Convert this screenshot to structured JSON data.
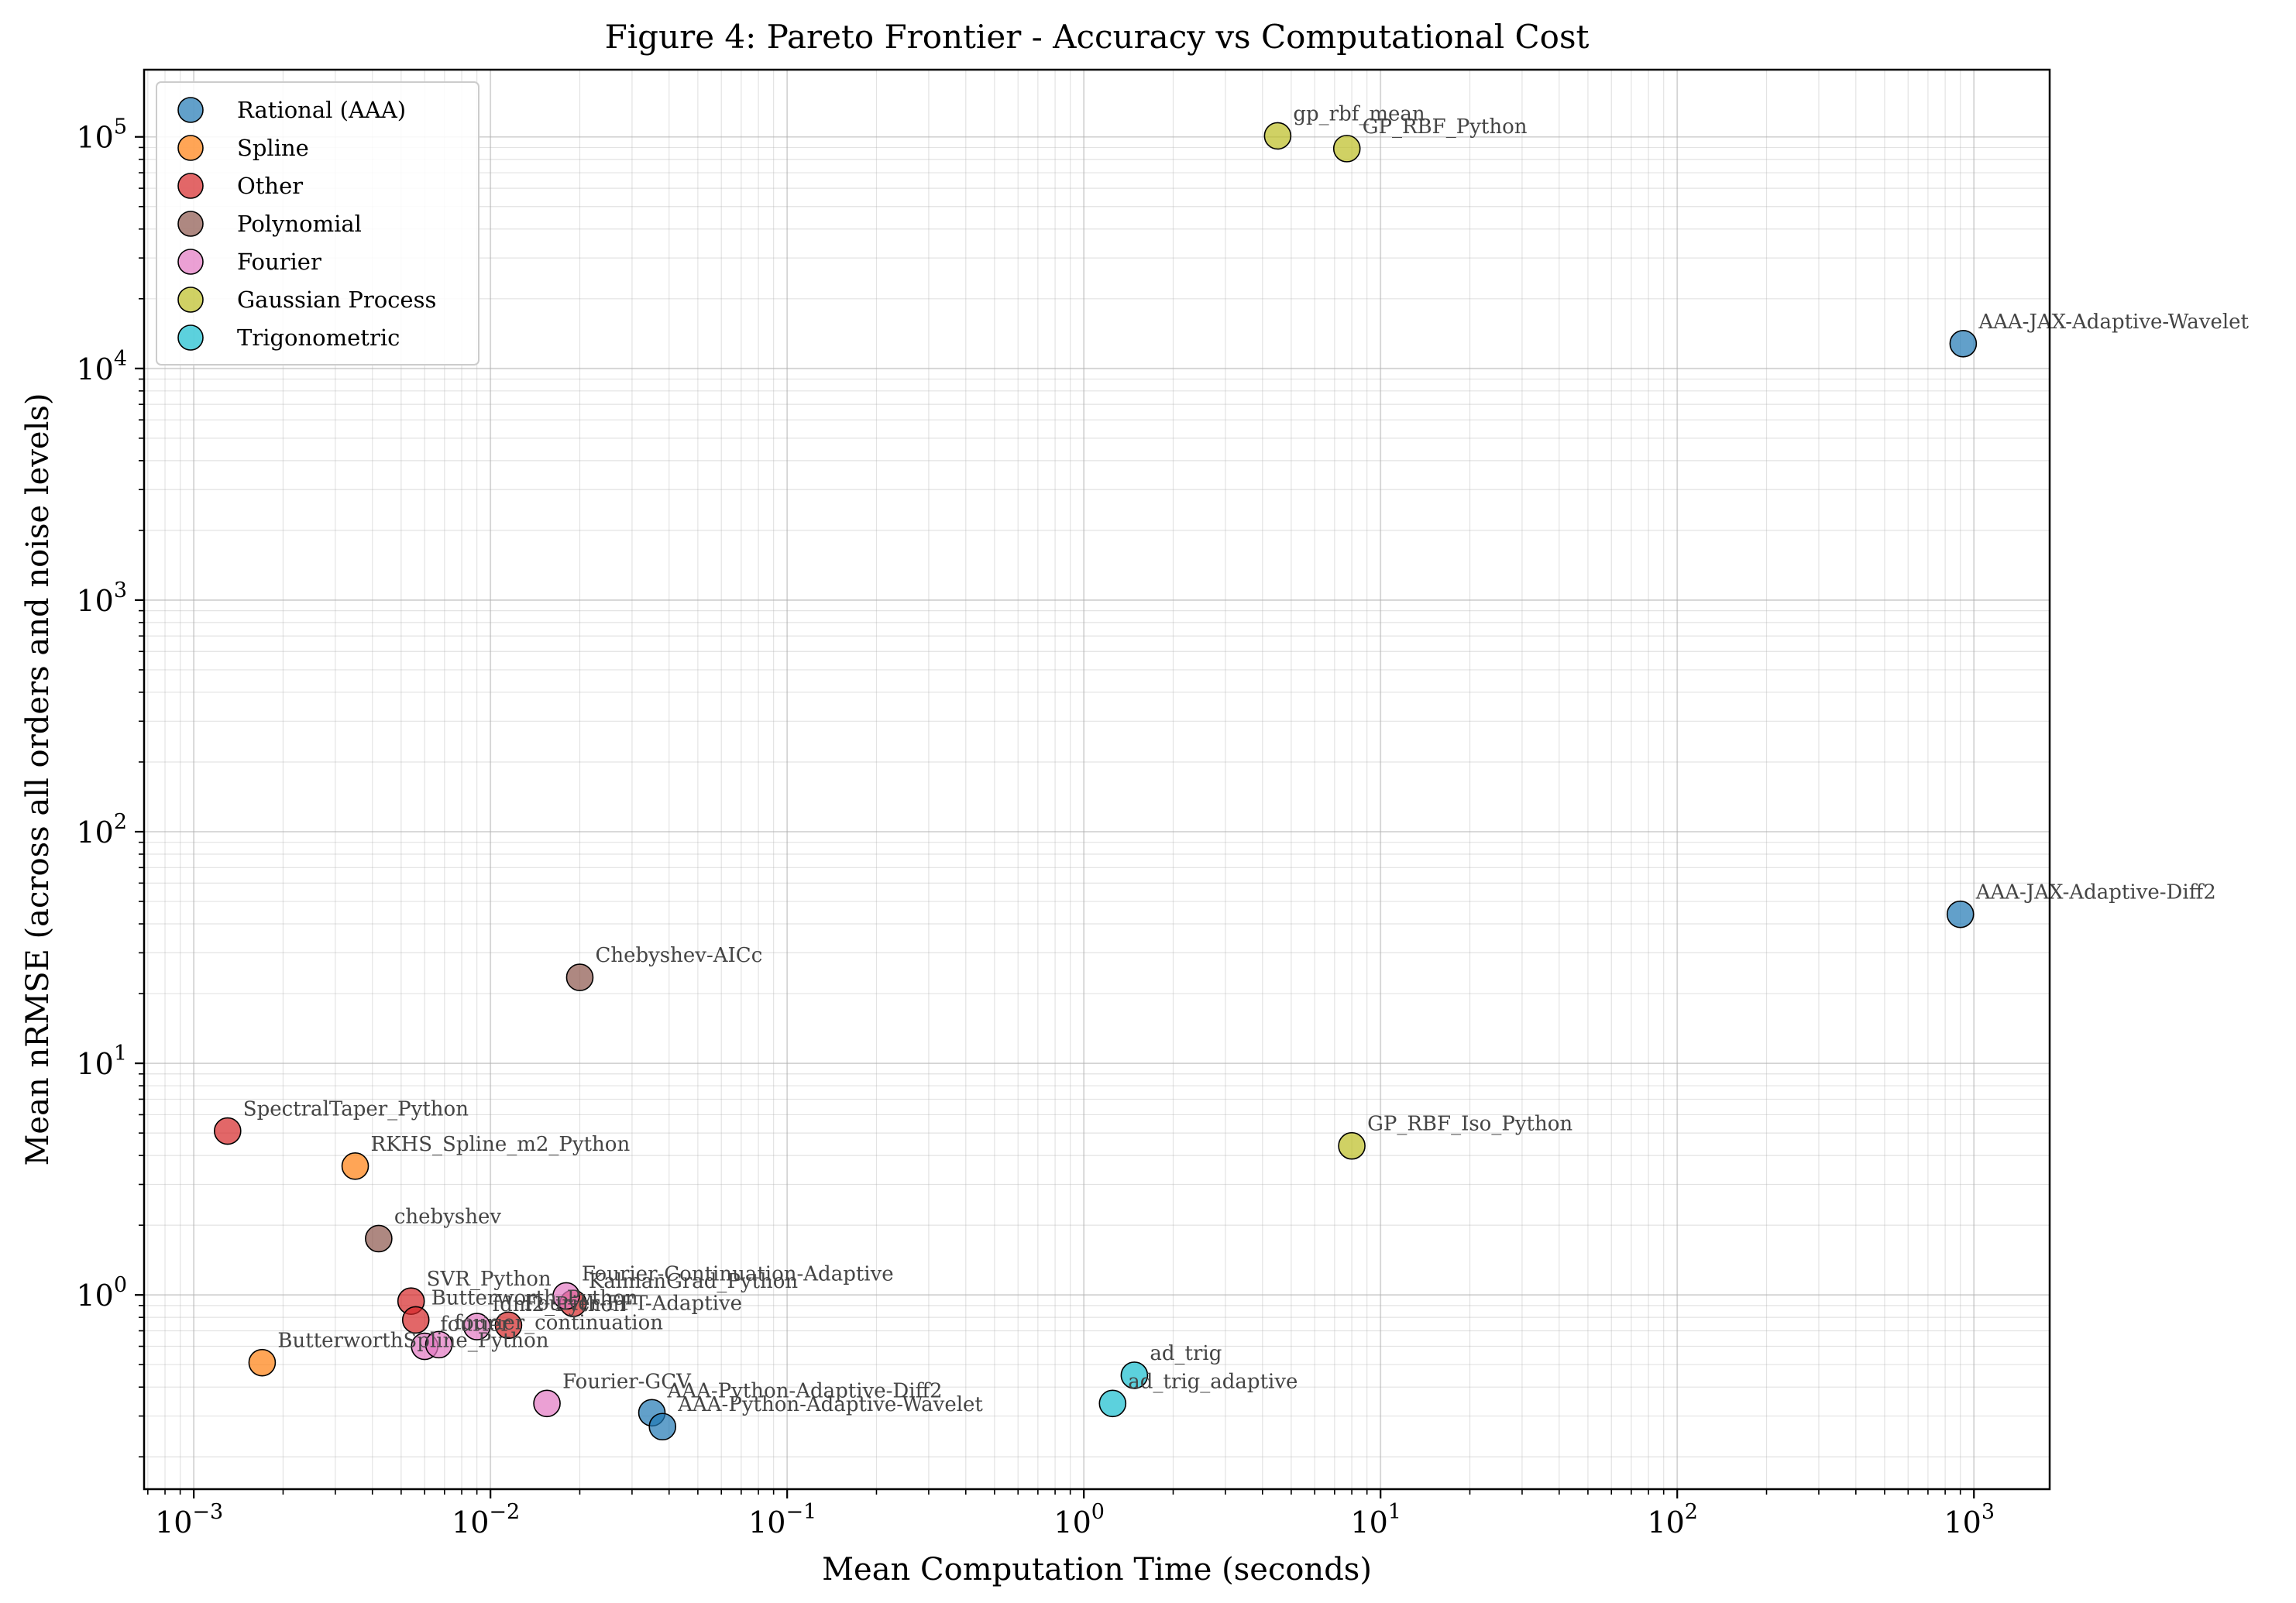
{
  "chart_data": {
    "type": "scatter",
    "title": "Figure 4: Pareto Frontier - Accuracy vs Computational Cost",
    "xlabel": "Mean Computation Time (seconds)",
    "ylabel": "Mean nRMSE (across all orders and noise levels)",
    "xscale": "log",
    "yscale": "log",
    "xlim": [
      0.00068,
      1800
    ],
    "ylim": [
      0.145,
      195000
    ],
    "grid": true,
    "legend_position": "top-left",
    "x_ticks": [
      {
        "value": 0.001,
        "base": "10",
        "exp": "−3"
      },
      {
        "value": 0.01,
        "base": "10",
        "exp": "−2"
      },
      {
        "value": 0.1,
        "base": "10",
        "exp": "−1"
      },
      {
        "value": 1,
        "base": "10",
        "exp": "0"
      },
      {
        "value": 10,
        "base": "10",
        "exp": "1"
      },
      {
        "value": 100,
        "base": "10",
        "exp": "2"
      },
      {
        "value": 1000,
        "base": "10",
        "exp": "3"
      }
    ],
    "y_ticks": [
      {
        "value": 1,
        "base": "10",
        "exp": "0"
      },
      {
        "value": 10,
        "base": "10",
        "exp": "1"
      },
      {
        "value": 100,
        "base": "10",
        "exp": "2"
      },
      {
        "value": 1000,
        "base": "10",
        "exp": "3"
      },
      {
        "value": 10000,
        "base": "10",
        "exp": "4"
      },
      {
        "value": 100000,
        "base": "10",
        "exp": "5"
      }
    ],
    "series": [
      {
        "name": "Rational (AAA)",
        "color": "#1f77b4",
        "points": [
          {
            "label": "AAA-JAX-Adaptive-Wavelet",
            "x": 920,
            "y": 12800
          },
          {
            "label": "AAA-JAX-Adaptive-Diff2",
            "x": 900,
            "y": 44
          },
          {
            "label": "AAA-Python-Adaptive-Diff2",
            "x": 0.035,
            "y": 0.31
          },
          {
            "label": "AAA-Python-Adaptive-Wavelet",
            "x": 0.038,
            "y": 0.27
          }
        ]
      },
      {
        "name": "Spline",
        "color": "#ff7f0e",
        "points": [
          {
            "label": "RKHS_Spline_m2_Python",
            "x": 0.0035,
            "y": 3.6
          },
          {
            "label": "ButterworthSpline_Python",
            "x": 0.0017,
            "y": 0.51
          }
        ]
      },
      {
        "name": "Other",
        "color": "#d62728",
        "points": [
          {
            "label": "SpectralTaper_Python",
            "x": 0.0013,
            "y": 5.1
          },
          {
            "label": "SVR_Python",
            "x": 0.0054,
            "y": 0.94
          },
          {
            "label": "Butterworth_Python",
            "x": 0.0056,
            "y": 0.78
          },
          {
            "label": "KalmanGrad_Python",
            "x": 0.019,
            "y": 0.92
          },
          {
            "label": "Fourier-FFT-Adaptive",
            "x": 0.0115,
            "y": 0.74
          }
        ]
      },
      {
        "name": "Polynomial",
        "color": "#8c564b",
        "points": [
          {
            "label": "Chebyshev-AICc",
            "x": 0.02,
            "y": 23.5
          },
          {
            "label": "chebyshev",
            "x": 0.0042,
            "y": 1.75
          }
        ]
      },
      {
        "name": "Fourier",
        "color": "#e377c2",
        "points": [
          {
            "label": "Fourier-Continuation-Adaptive",
            "x": 0.018,
            "y": 0.99
          },
          {
            "label": "fdm2_Python",
            "x": 0.009,
            "y": 0.73
          },
          {
            "label": "fourier",
            "x": 0.006,
            "y": 0.6
          },
          {
            "label": "fourier_continuation",
            "x": 0.0067,
            "y": 0.61
          },
          {
            "label": "Fourier-GCV",
            "x": 0.0155,
            "y": 0.34
          }
        ]
      },
      {
        "name": "Gaussian Process",
        "color": "#bcbd22",
        "points": [
          {
            "label": "gp_rbf_mean",
            "x": 4.5,
            "y": 101000
          },
          {
            "label": "GP_RBF_Python",
            "x": 7.7,
            "y": 89000
          },
          {
            "label": "GP_RBF_Iso_Python",
            "x": 8.0,
            "y": 4.4
          }
        ]
      },
      {
        "name": "Trigonometric",
        "color": "#17becf",
        "points": [
          {
            "label": "ad_trig",
            "x": 1.48,
            "y": 0.45
          },
          {
            "label": "ad_trig_adaptive",
            "x": 1.25,
            "y": 0.34
          }
        ]
      }
    ],
    "annotations": [
      {
        "text": "gp_rbf_mean",
        "x": 4.5,
        "y": 101000
      },
      {
        "text": "GP_RBF_Python",
        "x": 7.7,
        "y": 89000
      },
      {
        "text": "AAA-JAX-Adaptive-Wavelet",
        "x": 920,
        "y": 12800
      },
      {
        "text": "AAA-JAX-Adaptive-Diff2",
        "x": 900,
        "y": 44
      },
      {
        "text": "Chebyshev-AICc",
        "x": 0.02,
        "y": 23.5
      },
      {
        "text": "GP_RBF_Iso_Python",
        "x": 8.0,
        "y": 4.4
      },
      {
        "text": "SpectralTaper_Python",
        "x": 0.0013,
        "y": 5.1
      },
      {
        "text": "RKHS_Spline_m2_Python",
        "x": 0.0035,
        "y": 3.6
      },
      {
        "text": "chebyshev",
        "x": 0.0042,
        "y": 1.75
      },
      {
        "text": "SVR_Python",
        "x": 0.0054,
        "y": 0.94
      },
      {
        "text": "Fourier-Continuation-Adaptive",
        "x": 0.018,
        "y": 0.99
      },
      {
        "text": "KalmanGrad_Python",
        "x": 0.019,
        "y": 0.92
      },
      {
        "text": "Butterworth_Python",
        "x": 0.0056,
        "y": 0.78
      },
      {
        "text": "fdm2_Python",
        "x": 0.009,
        "y": 0.73
      },
      {
        "text": "Fourier-FFT-Adaptive",
        "x": 0.0115,
        "y": 0.74
      },
      {
        "text": "fourier",
        "x": 0.006,
        "y": 0.6
      },
      {
        "text": "fourier_continuation",
        "x": 0.0067,
        "y": 0.61
      },
      {
        "text": "ButterworthSpline_Python",
        "x": 0.0017,
        "y": 0.51
      },
      {
        "text": "ad_trig",
        "x": 1.48,
        "y": 0.45
      },
      {
        "text": "ad_trig_adaptive",
        "x": 1.25,
        "y": 0.34
      },
      {
        "text": "Fourier-GCV",
        "x": 0.0155,
        "y": 0.34
      },
      {
        "text": "AAA-Python-Adaptive-Diff2",
        "x": 0.035,
        "y": 0.31
      },
      {
        "text": "AAA-Python-Adaptive-Wavelet",
        "x": 0.038,
        "y": 0.27
      }
    ]
  }
}
